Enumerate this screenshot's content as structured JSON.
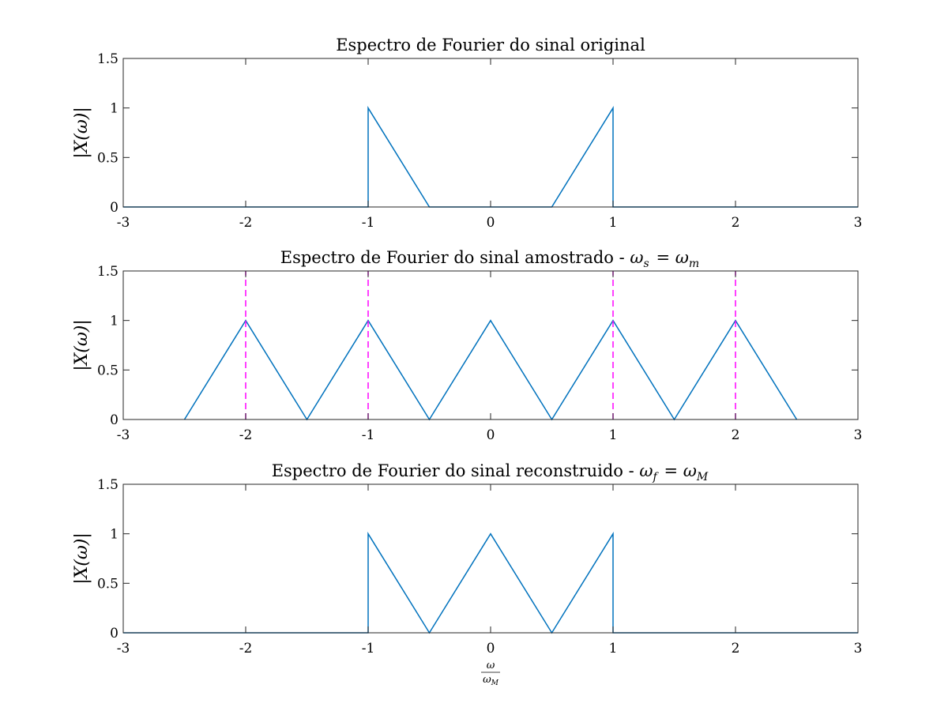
{
  "colors": {
    "series": "#0072BD",
    "markers": "#FF00FF",
    "axes": "#262626"
  },
  "chart_data": [
    {
      "type": "line",
      "title": "Espectro de Fourier do sinal original",
      "ylabel": "|X(ω)|",
      "xlim": [
        -3,
        3
      ],
      "ylim": [
        0,
        1.5
      ],
      "xticks": [
        -3,
        -2,
        -1,
        0,
        1,
        2,
        3
      ],
      "xtick_labels": [
        "-3",
        "-2",
        "-1",
        "0",
        "1",
        "2",
        "3"
      ],
      "yticks": [
        0,
        0.5,
        1,
        1.5
      ],
      "ytick_labels": [
        "0",
        "0.5",
        "1",
        "1.5"
      ],
      "grid": false,
      "series": [
        {
          "x": [
            -3,
            -1,
            -1,
            -0.5,
            0.5,
            1,
            1,
            3
          ],
          "y": [
            0,
            0,
            1,
            0,
            0,
            1,
            0,
            0
          ]
        }
      ],
      "vlines": []
    },
    {
      "type": "line",
      "title": "Espectro de Fourier do sinal amostrado - ω_s = ω_m",
      "ylabel": "|X(ω)|",
      "xlim": [
        -3,
        3
      ],
      "ylim": [
        0,
        1.5
      ],
      "xticks": [
        -3,
        -2,
        -1,
        0,
        1,
        2,
        3
      ],
      "xtick_labels": [
        "-3",
        "-2",
        "-1",
        "0",
        "1",
        "2",
        "3"
      ],
      "yticks": [
        0,
        0.5,
        1,
        1.5
      ],
      "ytick_labels": [
        "0",
        "0.5",
        "1",
        "1.5"
      ],
      "grid": false,
      "series": [
        {
          "x": [
            -2.5,
            -2,
            -1.5,
            -1,
            -0.5,
            0,
            0.5,
            1,
            1.5,
            2,
            2.5
          ],
          "y": [
            0,
            1,
            0,
            1,
            0,
            1,
            0,
            1,
            0,
            1,
            0
          ]
        }
      ],
      "vlines": [
        {
          "x": -2,
          "style": "dashed",
          "ymin": 0,
          "ymax": 1.5
        },
        {
          "x": -1,
          "style": "dashed",
          "ymin": 0,
          "ymax": 1.5
        },
        {
          "x": 1,
          "style": "dashed",
          "ymin": 0,
          "ymax": 1.5
        },
        {
          "x": 2,
          "style": "dashed",
          "ymin": 0,
          "ymax": 1.5
        }
      ]
    },
    {
      "type": "line",
      "title": "Espectro de Fourier do sinal reconstruido - ω_f = ω_M",
      "ylabel": "|X(ω)|",
      "xlabel": "ω/ω_M",
      "xlim": [
        -3,
        3
      ],
      "ylim": [
        0,
        1.5
      ],
      "xticks": [
        -3,
        -2,
        -1,
        0,
        1,
        2,
        3
      ],
      "xtick_labels": [
        "-3",
        "-2",
        "-1",
        "0",
        "1",
        "2",
        "3"
      ],
      "yticks": [
        0,
        0.5,
        1,
        1.5
      ],
      "ytick_labels": [
        "0",
        "0.5",
        "1",
        "1.5"
      ],
      "grid": false,
      "series": [
        {
          "x": [
            -3,
            -1,
            -1,
            -0.5,
            0,
            0.5,
            1,
            1,
            3
          ],
          "y": [
            0,
            0,
            1,
            0,
            1,
            0,
            1,
            0,
            0
          ]
        }
      ],
      "vlines": []
    }
  ]
}
